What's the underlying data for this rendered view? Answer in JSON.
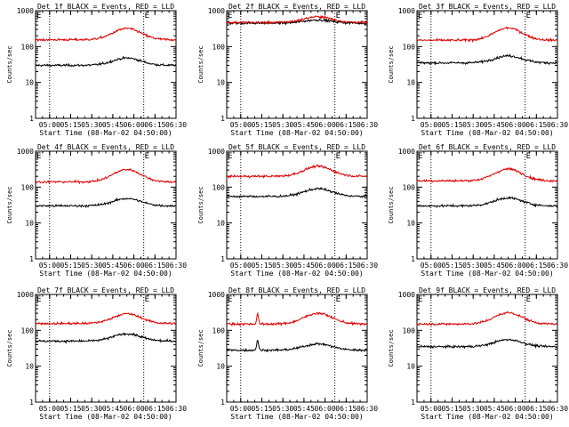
{
  "colors": {
    "events": "#000000",
    "lld": "#e00000",
    "axis": "#000000",
    "background": "#ffffff"
  },
  "chart_data": [
    {
      "type": "line",
      "title": "Det 1f BLACK = Events, RED = LLD",
      "ylabel": "Counts/sec",
      "xlabel": "Start Time (08-Mar-02 04:50:00)",
      "y_scale": "log",
      "ylim": [
        1,
        1000
      ],
      "yticks": [
        "1",
        "10",
        "100",
        "1000"
      ],
      "xlim": [
        "04:50",
        "06:30"
      ],
      "xticks": [
        "05:00",
        "05:15",
        "05:30",
        "05:45",
        "06:00",
        "06:15",
        "06:30"
      ],
      "dotted_vlines": [
        "05:00",
        "06:07"
      ],
      "corner_marks": [
        "E",
        "E"
      ],
      "series": [
        {
          "color": "black",
          "baseline": 30,
          "peak": 48,
          "peak_time": "05:55",
          "spikes": []
        },
        {
          "color": "red",
          "baseline": 155,
          "peak": 320,
          "peak_time": "05:55",
          "spikes": []
        }
      ]
    },
    {
      "type": "line",
      "title": "Det 2f BLACK = Events, RED = LLD",
      "ylabel": "Counts/sec",
      "xlabel": "Start Time (08-Mar-02 04:50:00)",
      "y_scale": "log",
      "ylim": [
        1,
        1000
      ],
      "yticks": [
        "1",
        "10",
        "100",
        "1000"
      ],
      "xlim": [
        "04:50",
        "06:30"
      ],
      "xticks": [
        "05:00",
        "05:15",
        "05:30",
        "05:45",
        "06:00",
        "06:15",
        "06:30"
      ],
      "dotted_vlines": [
        "05:00",
        "06:07"
      ],
      "corner_marks": [
        "E",
        "E"
      ],
      "series": [
        {
          "color": "black",
          "baseline": 450,
          "peak": 550,
          "peak_time": "05:55",
          "spikes": []
        },
        {
          "color": "red",
          "baseline": 470,
          "peak": 680,
          "peak_time": "05:55",
          "spikes": []
        }
      ]
    },
    {
      "type": "line",
      "title": "Det 3f BLACK = Events, RED = LLD",
      "ylabel": "Counts/sec",
      "xlabel": "Start Time (08-Mar-02 04:50:00)",
      "y_scale": "log",
      "ylim": [
        1,
        1000
      ],
      "yticks": [
        "1",
        "10",
        "100",
        "1000"
      ],
      "xlim": [
        "04:50",
        "06:30"
      ],
      "xticks": [
        "05:00",
        "05:15",
        "05:30",
        "05:45",
        "06:00",
        "06:15",
        "06:30"
      ],
      "dotted_vlines": [
        "05:00",
        "06:07"
      ],
      "corner_marks": [
        "E",
        "E"
      ],
      "series": [
        {
          "color": "black",
          "baseline": 35,
          "peak": 55,
          "peak_time": "05:55",
          "spikes": []
        },
        {
          "color": "red",
          "baseline": 150,
          "peak": 330,
          "peak_time": "05:55",
          "spikes": []
        }
      ]
    },
    {
      "type": "line",
      "title": "Det 4f BLACK = Events, RED = LLD",
      "ylabel": "Counts/sec",
      "xlabel": "Start Time (08-Mar-02 04:50:00)",
      "y_scale": "log",
      "ylim": [
        1,
        1000
      ],
      "yticks": [
        "1",
        "10",
        "100",
        "1000"
      ],
      "xlim": [
        "04:50",
        "06:30"
      ],
      "xticks": [
        "05:00",
        "05:15",
        "05:30",
        "05:45",
        "06:00",
        "06:15",
        "06:30"
      ],
      "dotted_vlines": [
        "05:00",
        "06:07"
      ],
      "corner_marks": [
        "E",
        "E"
      ],
      "series": [
        {
          "color": "black",
          "baseline": 30,
          "peak": 48,
          "peak_time": "05:55",
          "spikes": []
        },
        {
          "color": "red",
          "baseline": 140,
          "peak": 310,
          "peak_time": "05:55",
          "spikes": []
        }
      ]
    },
    {
      "type": "line",
      "title": "Det 5f BLACK = Events, RED = LLD",
      "ylabel": "Counts/sec",
      "xlabel": "Start Time (08-Mar-02 04:50:00)",
      "y_scale": "log",
      "ylim": [
        1,
        1000
      ],
      "yticks": [
        "1",
        "10",
        "100",
        "1000"
      ],
      "xlim": [
        "04:50",
        "06:30"
      ],
      "xticks": [
        "05:00",
        "05:15",
        "05:30",
        "05:45",
        "06:00",
        "06:15",
        "06:30"
      ],
      "dotted_vlines": [
        "05:00",
        "06:07"
      ],
      "corner_marks": [
        "E",
        "E"
      ],
      "series": [
        {
          "color": "black",
          "baseline": 55,
          "peak": 90,
          "peak_time": "05:55",
          "spikes": []
        },
        {
          "color": "red",
          "baseline": 200,
          "peak": 380,
          "peak_time": "05:55",
          "spikes": []
        }
      ]
    },
    {
      "type": "line",
      "title": "Det 6f BLACK = Events, RED = LLD",
      "ylabel": "Counts/sec",
      "xlabel": "Start Time (08-Mar-02 04:50:00)",
      "y_scale": "log",
      "ylim": [
        1,
        1000
      ],
      "yticks": [
        "1",
        "10",
        "100",
        "1000"
      ],
      "xlim": [
        "04:50",
        "06:30"
      ],
      "xticks": [
        "05:00",
        "05:15",
        "05:30",
        "05:45",
        "06:00",
        "06:15",
        "06:30"
      ],
      "dotted_vlines": [
        "05:00",
        "06:07"
      ],
      "corner_marks": [
        "E",
        "E"
      ],
      "series": [
        {
          "color": "black",
          "baseline": 30,
          "peak": 50,
          "peak_time": "05:55",
          "spikes": []
        },
        {
          "color": "red",
          "baseline": 150,
          "peak": 320,
          "peak_time": "05:55",
          "spikes": []
        }
      ]
    },
    {
      "type": "line",
      "title": "Det 7f BLACK = Events, RED = LLD",
      "ylabel": "Counts/sec",
      "xlabel": "Start Time (08-Mar-02 04:50:00)",
      "y_scale": "log",
      "ylim": [
        1,
        1000
      ],
      "yticks": [
        "1",
        "10",
        "100",
        "1000"
      ],
      "xlim": [
        "04:50",
        "06:30"
      ],
      "xticks": [
        "05:00",
        "05:15",
        "05:30",
        "05:45",
        "06:00",
        "06:15",
        "06:30"
      ],
      "dotted_vlines": [
        "05:00",
        "06:07"
      ],
      "corner_marks": [
        "E",
        "E"
      ],
      "series": [
        {
          "color": "black",
          "baseline": 50,
          "peak": 80,
          "peak_time": "05:55",
          "spikes": []
        },
        {
          "color": "red",
          "baseline": 155,
          "peak": 290,
          "peak_time": "05:55",
          "spikes": []
        }
      ]
    },
    {
      "type": "line",
      "title": "Det 8f BLACK = Events, RED = LLD",
      "ylabel": "Counts/sec",
      "xlabel": "Start Time (08-Mar-02 04:50:00)",
      "y_scale": "log",
      "ylim": [
        1,
        1000
      ],
      "yticks": [
        "1",
        "10",
        "100",
        "1000"
      ],
      "xlim": [
        "04:50",
        "06:30"
      ],
      "xticks": [
        "05:00",
        "05:15",
        "05:30",
        "05:45",
        "06:00",
        "06:15",
        "06:30"
      ],
      "dotted_vlines": [
        "05:00",
        "06:07"
      ],
      "corner_marks": [
        "E",
        "E"
      ],
      "series": [
        {
          "color": "black",
          "baseline": 28,
          "peak": 42,
          "peak_time": "05:55",
          "spikes": [
            {
              "time": "05:12",
              "value": 55
            }
          ]
        },
        {
          "color": "red",
          "baseline": 150,
          "peak": 300,
          "peak_time": "05:55",
          "spikes": [
            {
              "time": "05:12",
              "value": 290
            }
          ]
        }
      ]
    },
    {
      "type": "line",
      "title": "Det 9f BLACK = Events, RED = LLD",
      "ylabel": "Counts/sec",
      "xlabel": "Start Time (08-Mar-02 04:50:00)",
      "y_scale": "log",
      "ylim": [
        1,
        1000
      ],
      "yticks": [
        "1",
        "10",
        "100",
        "1000"
      ],
      "xlim": [
        "04:50",
        "06:30"
      ],
      "xticks": [
        "05:00",
        "05:15",
        "05:30",
        "05:45",
        "06:00",
        "06:15",
        "06:30"
      ],
      "dotted_vlines": [
        "05:00",
        "06:07"
      ],
      "corner_marks": [
        "E",
        "E"
      ],
      "series": [
        {
          "color": "black",
          "baseline": 35,
          "peak": 55,
          "peak_time": "05:55",
          "spikes": []
        },
        {
          "color": "red",
          "baseline": 150,
          "peak": 310,
          "peak_time": "05:55",
          "spikes": []
        }
      ]
    }
  ]
}
